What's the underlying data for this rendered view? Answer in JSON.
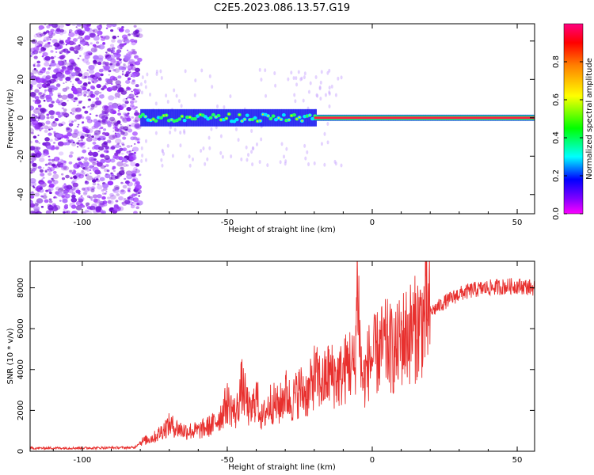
{
  "chart_data": [
    {
      "type": "heatmap",
      "title": "C2E5.2023.086.13.57.G19",
      "xlabel": "Height of straight line (km)",
      "ylabel": "Frequency (Hz)",
      "xlim": [
        -118,
        56
      ],
      "ylim": [
        -50,
        49
      ],
      "x_ticks": [
        -100,
        -50,
        0,
        50
      ],
      "y_ticks": [
        -40,
        -20,
        0,
        20,
        40
      ],
      "colorbar": {
        "label": "Normalized spectral amplitude",
        "range": [
          0,
          1
        ],
        "ticks": [
          0.0,
          0.2,
          0.4,
          0.6,
          0.8
        ]
      },
      "description_points": {
        "noise_region_x": [
          -118,
          -80
        ],
        "signal_line_freq": 0
      }
    },
    {
      "type": "line",
      "xlabel": "Height of straight line (km)",
      "ylabel": "SNR (10 * v/v)",
      "xlim": [
        -118,
        56
      ],
      "ylim": [
        0,
        9300
      ],
      "x_ticks": [
        -100,
        -50,
        0,
        50
      ],
      "y_ticks": [
        0,
        2000,
        4000,
        6000,
        8000
      ],
      "series": [
        {
          "color": "#e8302e",
          "x": [
            -118,
            -100,
            -82,
            -80,
            -75,
            -70,
            -65,
            -60,
            -55,
            -52,
            -50,
            -47,
            -45,
            -42,
            -40,
            -38,
            -35,
            -32,
            -30,
            -28,
            -25,
            -22,
            -20,
            -17,
            -15,
            -12,
            -10,
            -8,
            -6,
            -5,
            -4,
            -3,
            -1,
            0,
            3,
            5,
            8,
            10,
            12,
            15,
            18,
            20,
            25,
            30,
            35,
            40,
            45,
            50,
            56
          ],
          "y": [
            150,
            160,
            180,
            450,
            700,
            1300,
            1000,
            1000,
            1300,
            1800,
            2400,
            1800,
            3200,
            1800,
            2700,
            1600,
            2400,
            2200,
            2900,
            2400,
            3000,
            2800,
            3700,
            3300,
            3800,
            3600,
            3800,
            4400,
            4000,
            8800,
            4200,
            3400,
            4500,
            4500,
            5000,
            5200,
            4800,
            5500,
            5700,
            6000,
            6500,
            6800,
            7300,
            7700,
            7900,
            8000,
            8050,
            8100,
            8000
          ]
        }
      ]
    }
  ]
}
